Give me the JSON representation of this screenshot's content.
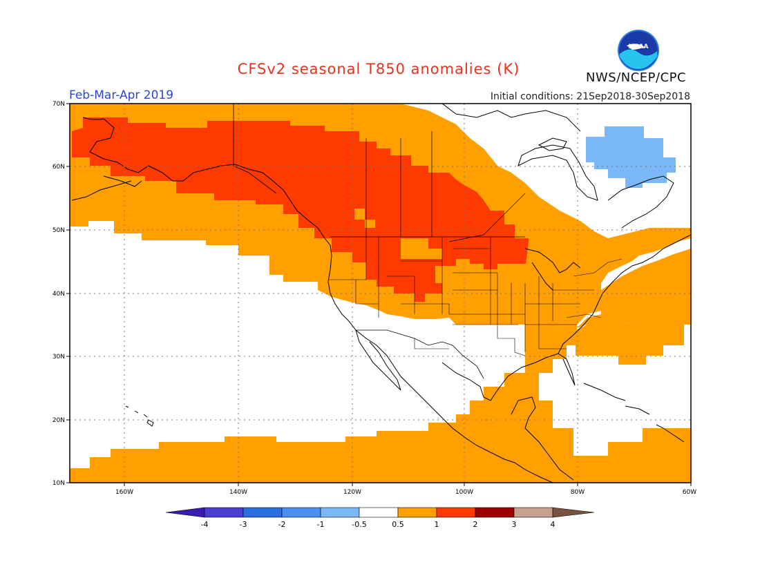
{
  "header": {
    "title": "CFSv2 seasonal T850 anomalies (K)",
    "period": "Feb-Mar-Apr 2019",
    "initial_conditions": "Initial conditions: 21Sep2018-30Sep2018",
    "agency": "NWS/NCEP/CPC",
    "logo_text": "NOAA"
  },
  "axes": {
    "lat_labels": [
      "70N",
      "60N",
      "50N",
      "40N",
      "30N",
      "20N",
      "10N"
    ],
    "lon_labels": [
      "160W",
      "140W",
      "120W",
      "100W",
      "80W",
      "60W"
    ]
  },
  "legend": {
    "tick_labels": [
      "-4",
      "-3",
      "-2",
      "-1",
      "-0.5",
      "0.5",
      "1",
      "2",
      "3",
      "4"
    ],
    "colors": [
      "#3a1db0",
      "#4a3fd0",
      "#2a6fe0",
      "#4a90f0",
      "#7ab8f8",
      "#ffffff",
      "#ffa000",
      "#ff3a00",
      "#a00000",
      "#c8a090",
      "#7a5040"
    ]
  },
  "colors": {
    "orange": "#ffa000",
    "red": "#ff3a00",
    "light_blue": "#7ab8f8"
  }
}
